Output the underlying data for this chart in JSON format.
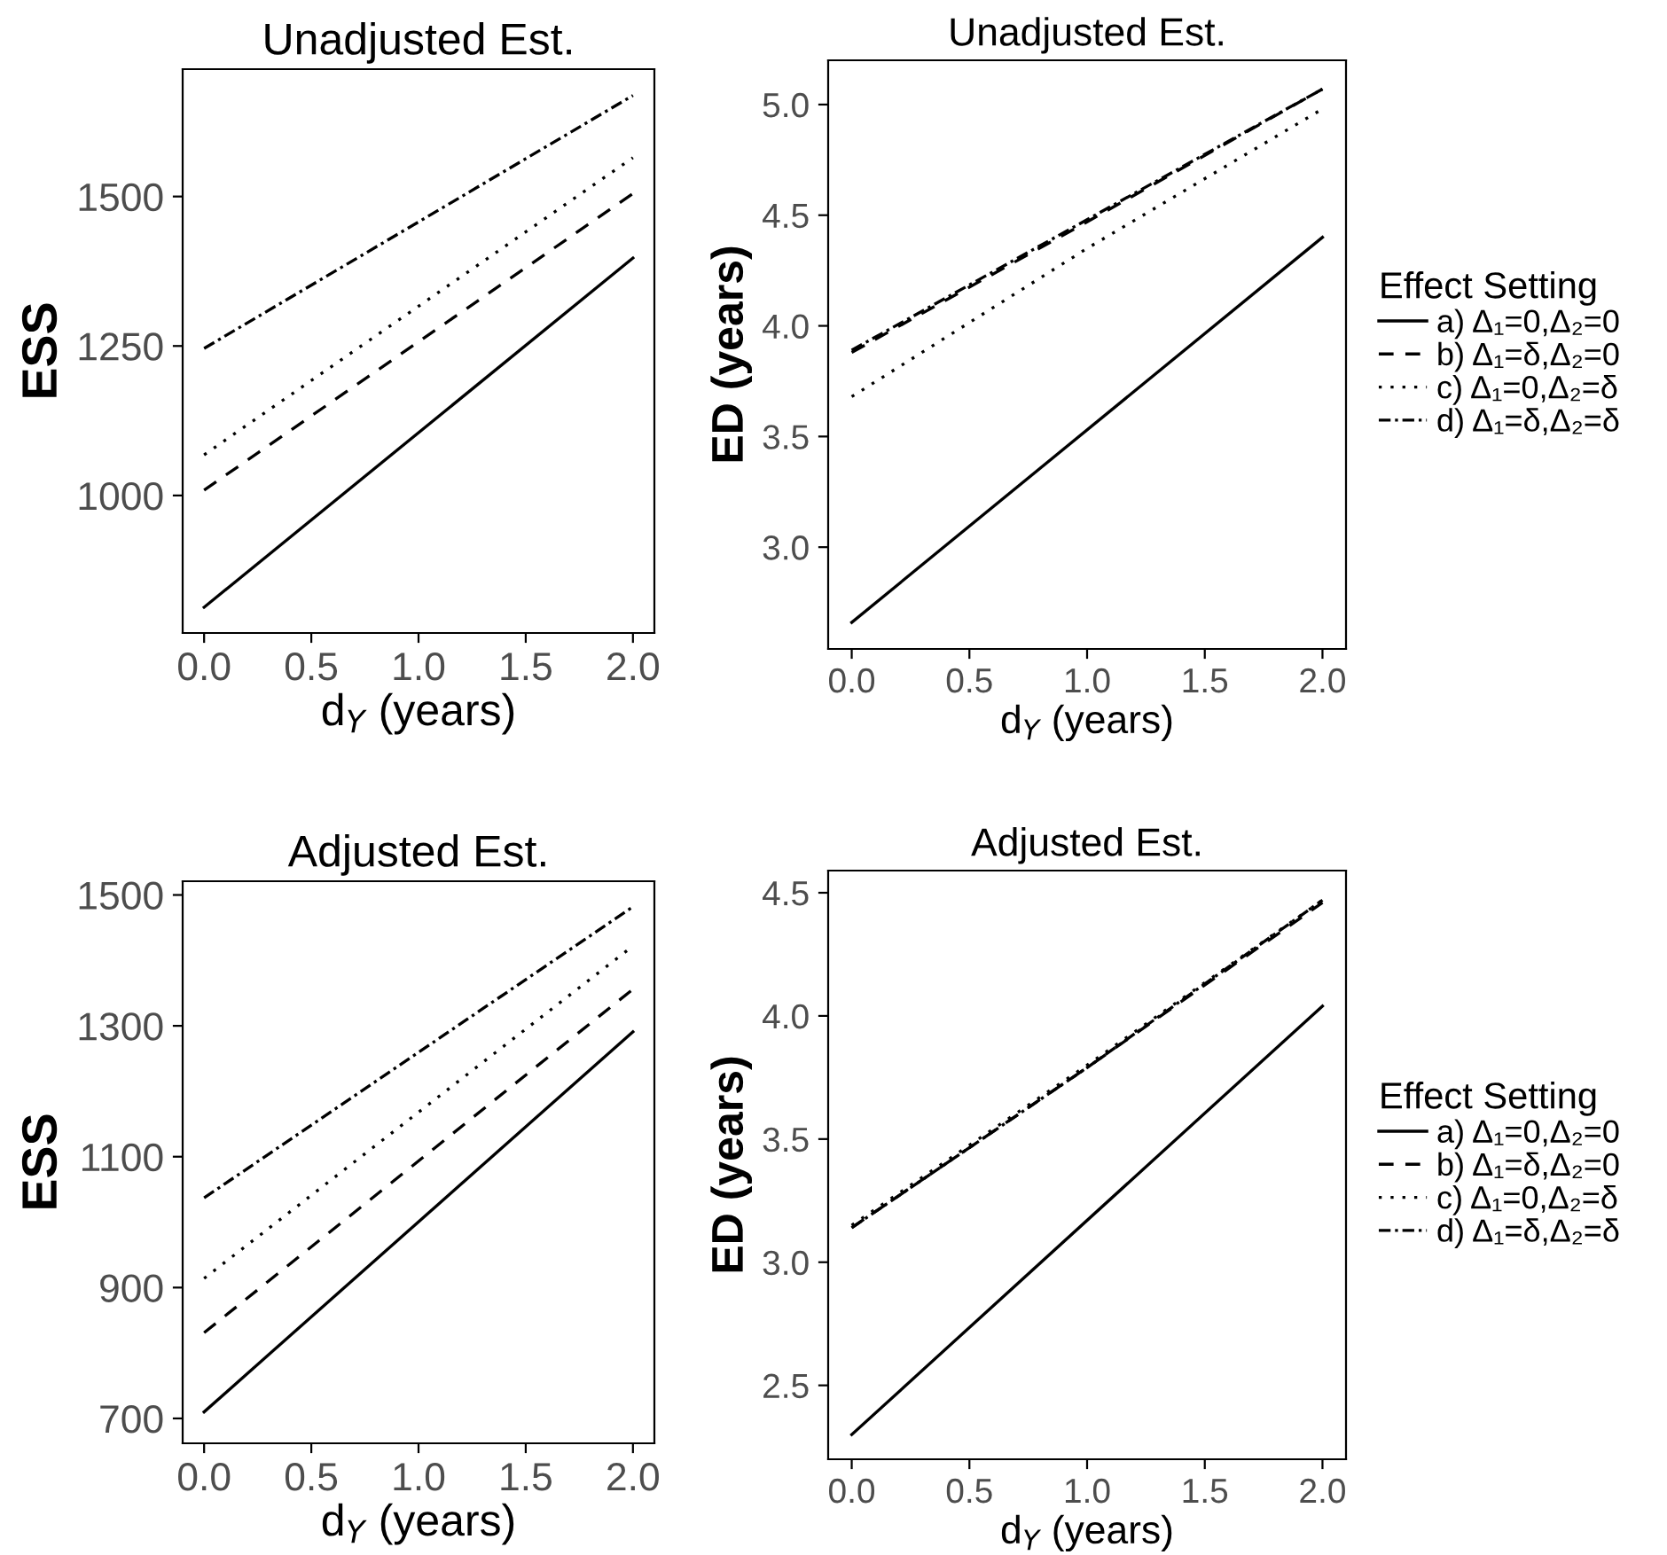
{
  "chart_data": [
    {
      "type": "line",
      "title": "Unadjusted Est.",
      "xlabel": "d$_{Y}$ (years)",
      "ylabel": "ESS",
      "xlim": [
        -0.1,
        2.1
      ],
      "xticks": [
        {
          "value": 0,
          "label": "0.0"
        },
        {
          "value": 0.5,
          "label": "0.5"
        },
        {
          "value": 1,
          "label": "1.0"
        },
        {
          "value": 1.5,
          "label": "1.5"
        },
        {
          "value": 2,
          "label": "2.0"
        }
      ],
      "ylim": [
        770,
        1713
      ],
      "yticks": [
        1000,
        1250,
        1500
      ],
      "grid": false,
      "legend": false,
      "series": [
        {
          "color": "#000000",
          "line_style": "solid",
          "x": [
            0,
            2
          ],
          "values": [
            813,
            1397
          ]
        },
        {
          "color": "#000000",
          "line_style": "dashed",
          "x": [
            0,
            2
          ],
          "values": [
            1009,
            1505
          ]
        },
        {
          "color": "#000000",
          "line_style": "dotted",
          "x": [
            0,
            2
          ],
          "values": [
            1068,
            1565
          ]
        },
        {
          "color": "#000000",
          "line_style": "dashdot",
          "x": [
            0,
            2
          ],
          "values": [
            1246,
            1669
          ]
        }
      ]
    },
    {
      "type": "line",
      "title": "Unadjusted Est.",
      "xlabel": "d$_{Y}$ (years)",
      "ylabel": "ED (years)",
      "legend_title": "Effect Setting",
      "xlim": [
        -0.1,
        2.1
      ],
      "xticks": [
        {
          "value": 0,
          "label": "0.0"
        },
        {
          "value": 0.5,
          "label": "0.5"
        },
        {
          "value": 1,
          "label": "1.0"
        },
        {
          "value": 1.5,
          "label": "1.5"
        },
        {
          "value": 2,
          "label": "2.0"
        }
      ],
      "ylim": [
        2.54,
        5.2
      ],
      "yticks": [
        {
          "value": 3,
          "label": "3.0"
        },
        {
          "value": 3.5,
          "label": "3.5"
        },
        {
          "value": 4,
          "label": "4.0"
        },
        {
          "value": 4.5,
          "label": "4.5"
        },
        {
          "value": 5,
          "label": "5.0"
        }
      ],
      "grid": false,
      "legend": "right",
      "series": [
        {
          "name": "a) Δ₁=0,Δ₂=0",
          "color": "#000000",
          "line_style": "solid",
          "x": [
            0,
            2
          ],
          "values": [
            2.66,
            4.4
          ]
        },
        {
          "name": "b) Δ₁=δ,Δ₂=0",
          "color": "#000000",
          "line_style": "dashed",
          "x": [
            0,
            1,
            2
          ],
          "values": [
            3.88,
            4.47,
            5.07
          ]
        },
        {
          "name": "c) Δ₁=0,Δ₂=δ",
          "color": "#000000",
          "line_style": "dotted",
          "x": [
            0,
            1,
            2
          ],
          "values": [
            3.68,
            4.35,
            4.98
          ]
        },
        {
          "name": "d) Δ₁=δ,Δ₂=δ",
          "color": "#000000",
          "line_style": "dashdot",
          "x": [
            0,
            1,
            2
          ],
          "values": [
            3.89,
            4.48,
            5.07
          ]
        }
      ]
    },
    {
      "type": "line",
      "title": "Adjusted Est.",
      "xlabel": "d$_{Y}$ (years)",
      "ylabel": "ESS",
      "xlim": [
        -0.1,
        2.1
      ],
      "xticks": [
        {
          "value": 0,
          "label": "0.0"
        },
        {
          "value": 0.5,
          "label": "0.5"
        },
        {
          "value": 1,
          "label": "1.0"
        },
        {
          "value": 1.5,
          "label": "1.5"
        },
        {
          "value": 2,
          "label": "2.0"
        }
      ],
      "ylim": [
        662,
        1521
      ],
      "yticks": [
        700,
        900,
        1100,
        1300,
        1500
      ],
      "grid": false,
      "legend": false,
      "series": [
        {
          "color": "#000000",
          "line_style": "solid",
          "x": [
            0,
            2
          ],
          "values": [
            710,
            1291
          ]
        },
        {
          "color": "#000000",
          "line_style": "dashed",
          "x": [
            0,
            2
          ],
          "values": [
            831,
            1356
          ]
        },
        {
          "color": "#000000",
          "line_style": "dotted",
          "x": [
            0,
            2
          ],
          "values": [
            914,
            1422
          ]
        },
        {
          "color": "#000000",
          "line_style": "dashdot",
          "x": [
            0,
            2
          ],
          "values": [
            1037,
            1482
          ]
        }
      ]
    },
    {
      "type": "line",
      "title": "Adjusted Est.",
      "xlabel": "d$_{Y}$ (years)",
      "ylabel": "ED (years)",
      "legend_title": "Effect Setting",
      "xlim": [
        -0.1,
        2.1
      ],
      "xticks": [
        {
          "value": 0,
          "label": "0.0"
        },
        {
          "value": 0.5,
          "label": "0.5"
        },
        {
          "value": 1,
          "label": "1.0"
        },
        {
          "value": 1.5,
          "label": "1.5"
        },
        {
          "value": 2,
          "label": "2.0"
        }
      ],
      "ylim": [
        2.2,
        4.59
      ],
      "yticks": [
        2.5,
        {
          "value": 3,
          "label": "3.0"
        },
        3.5,
        {
          "value": 4,
          "label": "4.0"
        },
        4.5
      ],
      "grid": false,
      "legend": "right",
      "series": [
        {
          "name": "a) Δ₁=0,Δ₂=0",
          "color": "#000000",
          "line_style": "solid",
          "x": [
            0,
            2
          ],
          "values": [
            2.3,
            4.04
          ]
        },
        {
          "name": "b) Δ₁=δ,Δ₂=0",
          "color": "#000000",
          "line_style": "dashed",
          "x": [
            0,
            1,
            2
          ],
          "values": [
            3.14,
            3.79,
            4.46
          ]
        },
        {
          "name": "c) Δ₁=0,Δ₂=δ",
          "color": "#000000",
          "line_style": "dotted",
          "x": [
            0,
            1,
            2
          ],
          "values": [
            3.15,
            3.8,
            4.47
          ]
        },
        {
          "name": "d) Δ₁=δ,Δ₂=δ",
          "color": "#000000",
          "line_style": "dashdot",
          "x": [
            0,
            1,
            2
          ],
          "values": [
            3.14,
            3.79,
            4.47
          ]
        }
      ]
    }
  ]
}
